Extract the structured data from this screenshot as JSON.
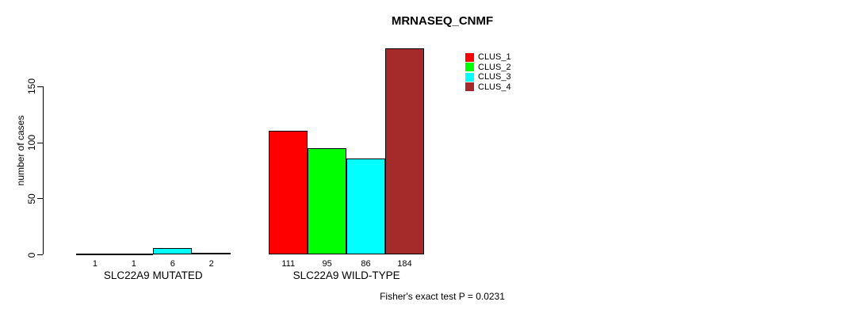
{
  "chart_data": {
    "type": "bar",
    "title": "MRNASEQ_CNMF",
    "ylabel": "number of cases",
    "xlabel": "",
    "categories": [
      "SLC22A9 MUTATED",
      "SLC22A9 WILD-TYPE"
    ],
    "series": [
      {
        "name": "CLUS_1",
        "color": "#FF0000",
        "values": [
          1,
          111
        ]
      },
      {
        "name": "CLUS_2",
        "color": "#00FF00",
        "values": [
          1,
          95
        ]
      },
      {
        "name": "CLUS_3",
        "color": "#00FFFF",
        "values": [
          6,
          86
        ]
      },
      {
        "name": "CLUS_4",
        "color": "#A52A2A",
        "values": [
          2,
          184
        ]
      }
    ],
    "yticks": [
      0,
      50,
      100,
      150
    ],
    "ylim": [
      0,
      185
    ],
    "grid": false,
    "legend_position": "top-right-inside",
    "bar_value_labels_shown": true,
    "footnote": "Fisher's exact test P = 0.0231"
  }
}
